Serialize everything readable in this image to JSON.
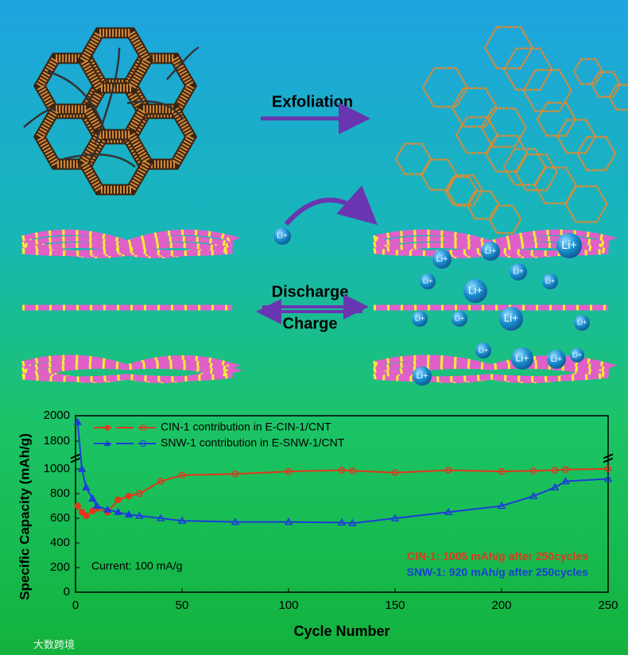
{
  "diagram": {
    "exfoliation": "Exfoliation",
    "discharge": "Discharge",
    "charge": "Charge",
    "ion_label": "Li+"
  },
  "watermark": "大数跨境",
  "chart_data": {
    "type": "line",
    "xlabel": "Cycle Number",
    "ylabel": "Specific Capacity (mAh/g)",
    "x": [
      1,
      3,
      5,
      8,
      10,
      15,
      20,
      25,
      30,
      40,
      50,
      75,
      100,
      125,
      130,
      150,
      175,
      200,
      215,
      225,
      230,
      250
    ],
    "series": [
      {
        "name": "CIN-1 contribution in E-CIN-1/CNT",
        "color": "#e0381c",
        "marker": "circle",
        "values": [
          700,
          650,
          620,
          660,
          680,
          650,
          750,
          780,
          800,
          900,
          950,
          960,
          980,
          990,
          985,
          970,
          990,
          980,
          985,
          990,
          995,
          1005
        ]
      },
      {
        "name": "SNW-1 contribution in E-SNW-1/CNT",
        "color": "#1c3ed6",
        "marker": "triangle",
        "values": [
          1950,
          1000,
          850,
          760,
          700,
          670,
          650,
          630,
          620,
          600,
          580,
          570,
          570,
          565,
          560,
          600,
          650,
          700,
          780,
          850,
          900,
          920
        ]
      }
    ],
    "xlim": [
      0,
      250
    ],
    "xticks": [
      0,
      50,
      100,
      150,
      200,
      250
    ],
    "ylim": [
      0,
      2000
    ],
    "y_break": [
      1000,
      1800
    ],
    "yticks": [
      0,
      200,
      400,
      600,
      800,
      1000,
      1800,
      2000
    ],
    "annotations": [
      {
        "text": "Current: 100 mA/g",
        "color": "#000000"
      },
      {
        "text": "CIN-1: 1005 mAh/g after 250cycles",
        "color": "#e0381c"
      },
      {
        "text": "SNW-1: 920 mAh/g after 250cycles",
        "color": "#1c3ed6"
      }
    ]
  }
}
